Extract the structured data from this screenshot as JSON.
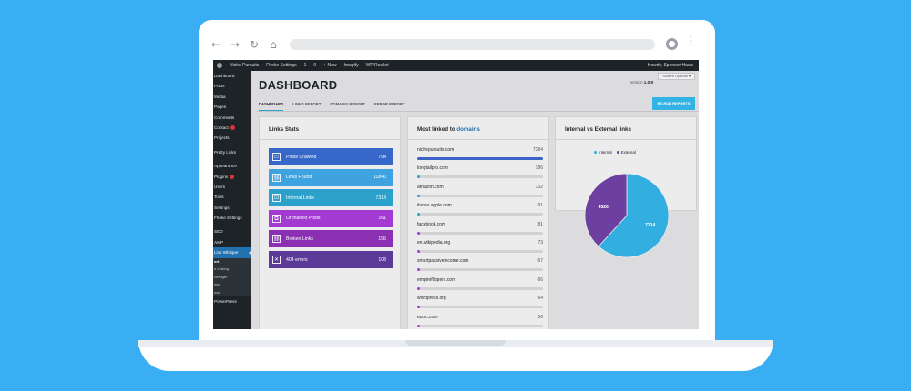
{
  "browser": {
    "back_icon": "arrow-left",
    "forward_icon": "arrow-right",
    "reload_icon": "reload",
    "home_icon": "home"
  },
  "adminbar": {
    "site": "Niche Pursuits",
    "items": [
      "Fhoke Settings",
      "1",
      "0",
      "+ New",
      "Imagify",
      "WP Rocket"
    ],
    "howdy": "Howdy, Spencer Haws"
  },
  "sidebar": {
    "items": [
      {
        "label": "Dashboard"
      },
      {
        "label": "Posts"
      },
      {
        "label": "Media"
      },
      {
        "label": "Pages"
      },
      {
        "label": "Comments"
      },
      {
        "label": "Contact",
        "badge": true
      },
      {
        "label": "Projects"
      },
      {
        "label": "Pretty Links"
      },
      {
        "label": "Appearance"
      },
      {
        "label": "Plugins",
        "badge": true
      },
      {
        "label": "Users"
      },
      {
        "label": "Tools"
      },
      {
        "label": "Settings"
      },
      {
        "label": "Fhoke Settings"
      },
      {
        "label": "SEO"
      },
      {
        "label": "AMP"
      },
      {
        "label": "Link Whisper",
        "active": true
      }
    ],
    "submenu": [
      "ort",
      "e Linking",
      "changer",
      "ings",
      "nse"
    ],
    "footer": "PowerPress"
  },
  "header": {
    "title": "DASHBOARD",
    "screen_options": "Screen Options ▾",
    "version_label": "version",
    "version": "1.0.9",
    "tabs": [
      "DASHBOARD",
      "LINKS REPORT",
      "DOMAINS REPORT",
      "ERROR REPORT"
    ],
    "rerun_button": "RE-RUN REPORTS"
  },
  "links_stats": {
    "title": "Links Stats",
    "rows": [
      {
        "label": "Posts Crawled",
        "value": "794",
        "color": "#3568c9",
        "icon": "window-icon",
        "glyph": "▭"
      },
      {
        "label": "Links Found",
        "value": "11840",
        "color": "#3fa3df",
        "icon": "link-icon",
        "glyph": "⛓"
      },
      {
        "label": "Internal Links",
        "value": "7314",
        "color": "#2ca1cc",
        "icon": "internal-link-icon",
        "glyph": "⊡"
      },
      {
        "label": "Orphaned Posts",
        "value": "161",
        "color": "#a33bd3",
        "icon": "orphan-icon",
        "glyph": "⧉"
      },
      {
        "label": "Broken Links",
        "value": "195",
        "color": "#8b2fb3",
        "icon": "broken-link-icon",
        "glyph": "⛓"
      },
      {
        "label": "404 errors",
        "value": "108",
        "color": "#5c3a98",
        "icon": "error-icon",
        "glyph": "✕"
      }
    ]
  },
  "domains": {
    "title_prefix": "Most linked to",
    "title_link": "domains",
    "max": 7384,
    "rows": [
      {
        "domain": "nichepursuits.com",
        "count": 7384,
        "color": "#3b63c6"
      },
      {
        "domain": "longtailpro.com",
        "count": 186,
        "color": "#2ea2cc"
      },
      {
        "domain": "amazon.com",
        "count": 132,
        "color": "#2ea2cc"
      },
      {
        "domain": "itunes.apple.com",
        "count": 91,
        "color": "#2ea2cc"
      },
      {
        "domain": "facebook.com",
        "count": 81,
        "color": "#a33bd3"
      },
      {
        "domain": "en.wikipedia.org",
        "count": 73,
        "color": "#a33bd3"
      },
      {
        "domain": "smartpassiveincome.com",
        "count": 67,
        "color": "#a33bd3"
      },
      {
        "domain": "empireflippers.com",
        "count": 66,
        "color": "#a33bd3"
      },
      {
        "domain": "wordpress.org",
        "count": 64,
        "color": "#a33bd3"
      },
      {
        "domain": "ezoic.com",
        "count": 56,
        "color": "#a33bd3"
      }
    ]
  },
  "internal_external": {
    "title": "Internal vs External links",
    "legend": [
      {
        "label": "Internal",
        "color": "#33aee0"
      },
      {
        "label": "External",
        "color": "#6c3fa0"
      }
    ]
  },
  "chart_data": {
    "type": "pie",
    "title": "Internal vs External links",
    "categories": [
      "Internal",
      "External"
    ],
    "values": [
      7314,
      4526
    ],
    "labels": [
      "7314",
      "4526"
    ],
    "colors": [
      "#33aee0",
      "#6c3fa0"
    ],
    "legend": "top"
  }
}
